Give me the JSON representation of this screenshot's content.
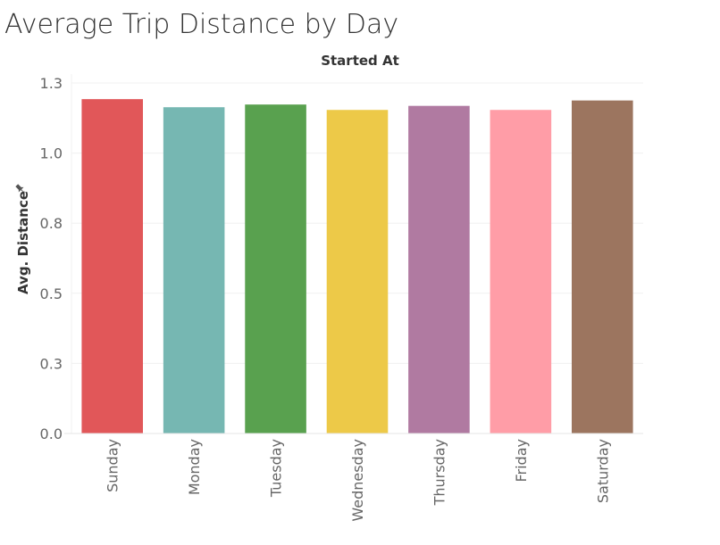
{
  "chart_data": {
    "type": "bar",
    "title": "Average Trip Distance by Day",
    "column_header": "Started At",
    "ylabel": "Avg. Distance",
    "ylim": [
      0,
      1.3
    ],
    "yticks": [
      {
        "value": 0.0,
        "label": "0.0"
      },
      {
        "value": 0.26,
        "label": "0.3"
      },
      {
        "value": 0.52,
        "label": "0.5"
      },
      {
        "value": 0.78,
        "label": "0.8"
      },
      {
        "value": 1.04,
        "label": "1.0"
      },
      {
        "value": 1.3,
        "label": "1.3"
      }
    ],
    "categories": [
      "Sunday",
      "Monday",
      "Tuesday",
      "Wednesday",
      "Thursday",
      "Friday",
      "Saturday"
    ],
    "values": [
      1.24,
      1.21,
      1.22,
      1.2,
      1.215,
      1.2,
      1.235
    ],
    "colors": [
      "#E15759",
      "#76B7B2",
      "#59A14F",
      "#EDC948",
      "#B07AA1",
      "#FF9DA7",
      "#9C755F"
    ],
    "gridlines": true,
    "legend": "none"
  }
}
